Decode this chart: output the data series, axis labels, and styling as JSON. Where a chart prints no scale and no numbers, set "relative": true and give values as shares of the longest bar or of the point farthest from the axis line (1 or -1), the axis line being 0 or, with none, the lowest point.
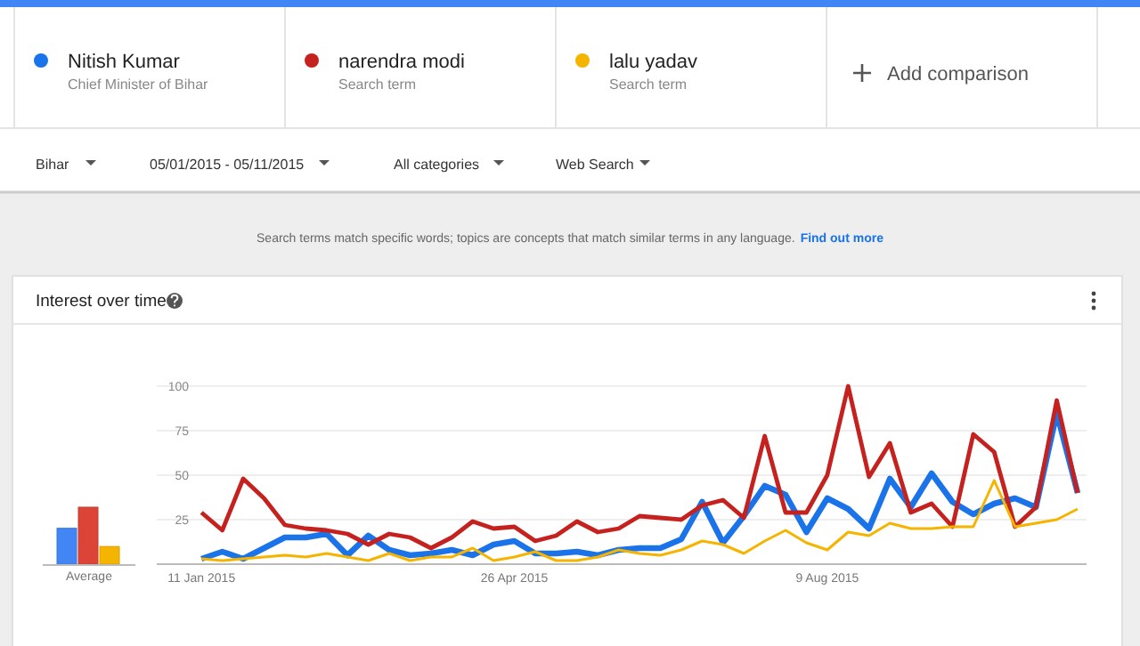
{
  "chart_data": [
    {
      "type": "bar",
      "relative": true,
      "categories": [
        "Average"
      ],
      "series": [
        {
          "color": "#4285f4",
          "values": [
            0.63
          ]
        },
        {
          "color": "#db4437",
          "values": [
            1
          ]
        },
        {
          "color": "#f4b400",
          "values": [
            0.31
          ]
        }
      ]
    },
    {
      "type": "line",
      "title": "Interest over time",
      "legend": "top",
      "grid": "y",
      "x": [
        "2015-01-11",
        "2015-01-18",
        "2015-01-25",
        "2015-02-01",
        "2015-02-08",
        "2015-02-15",
        "2015-02-22",
        "2015-03-01",
        "2015-03-08",
        "2015-03-15",
        "2015-03-22",
        "2015-03-29",
        "2015-04-05",
        "2015-04-12",
        "2015-04-19",
        "2015-04-26",
        "2015-05-03",
        "2015-05-10",
        "2015-05-17",
        "2015-05-24",
        "2015-05-31",
        "2015-06-07",
        "2015-06-14",
        "2015-06-21",
        "2015-06-28",
        "2015-07-05",
        "2015-07-12",
        "2015-07-19",
        "2015-07-26",
        "2015-08-02",
        "2015-08-09",
        "2015-08-16",
        "2015-08-23",
        "2015-08-30",
        "2015-09-06",
        "2015-09-13",
        "2015-09-20",
        "2015-09-27",
        "2015-10-04",
        "2015-10-11",
        "2015-10-18",
        "2015-10-25",
        "2015-11-01"
      ],
      "xlim": [
        "2014-12-27",
        "2015-11-04"
      ],
      "xticks": [
        {
          "value": "2015-01-11",
          "label": "11 Jan 2015"
        },
        {
          "value": "2015-04-26",
          "label": "26 Apr 2015"
        },
        {
          "value": "2015-08-09",
          "label": "9 Aug 2015"
        }
      ],
      "ylim": [
        0,
        100
      ],
      "yticks": [
        {
          "value": 0,
          "label": null
        },
        25,
        50,
        75,
        100
      ],
      "series": [
        {
          "name": "Nitish Kumar",
          "color": "#1a73e8",
          "values": [
            3,
            7,
            3,
            9,
            15,
            15,
            17,
            5,
            16,
            8,
            5,
            6,
            8,
            5,
            11,
            13,
            6,
            6,
            7,
            5,
            8,
            9,
            9,
            14,
            35,
            12,
            27,
            44,
            39,
            18,
            37,
            31,
            20,
            48,
            32,
            51,
            35,
            28,
            34,
            37,
            32,
            85,
            40
          ]
        },
        {
          "name": "narendra modi",
          "color": "#c5221f",
          "values": [
            29,
            19,
            48,
            37,
            22,
            20,
            19,
            17,
            11,
            17,
            15,
            9,
            15,
            24,
            20,
            21,
            13,
            16,
            24,
            18,
            20,
            27,
            26,
            25,
            33,
            36,
            26,
            72,
            29,
            29,
            50,
            100,
            49,
            68,
            29,
            34,
            21,
            73,
            63,
            21,
            32,
            92,
            40
          ]
        },
        {
          "name": "lalu yadav",
          "color": "#f4b400",
          "values": [
            3,
            2,
            3,
            4,
            5,
            4,
            6,
            4,
            2,
            6,
            2,
            4,
            4,
            9,
            2,
            4,
            7,
            2,
            2,
            4,
            8,
            6,
            5,
            8,
            13,
            11,
            6,
            13,
            19,
            12,
            8,
            18,
            16,
            23,
            20,
            20,
            21,
            21,
            47,
            21,
            23,
            25,
            31
          ]
        }
      ],
      "annotations": [
        "Chief Minister of Bihar",
        "Search term",
        "Search term",
        "Add comparison",
        "Bihar",
        "05/01/2015 - 05/11/2015",
        "All categories",
        "Web Search",
        "Search terms match specific words; topics are concepts that match similar terms in any language.",
        "Find out more"
      ]
    }
  ]
}
